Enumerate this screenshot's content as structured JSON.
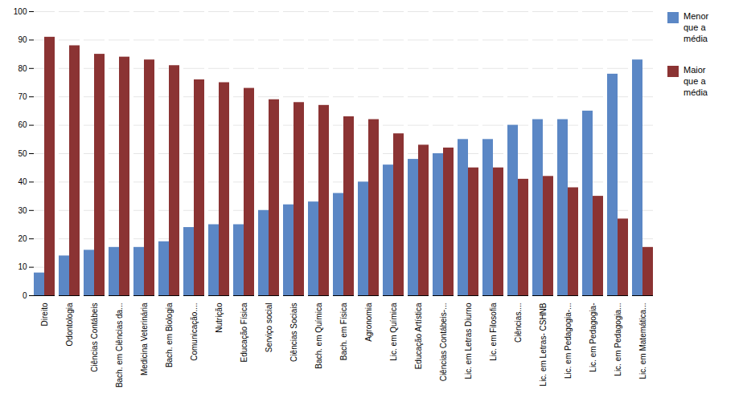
{
  "chart_data": {
    "type": "bar",
    "categories": [
      "Direito",
      "Odontologia",
      "Ciências Contábeis",
      "Bach. em Ciências da...",
      "Medicina Veterinária",
      "Bach. em Biologia",
      "Comunicação....",
      "Nutrição",
      "Educação Física",
      "Serviço social",
      "Ciências Sociais",
      "Bach. em Química",
      "Bach. em Física",
      "Agronomia",
      "Lic. em Química",
      "Educação Artística",
      "Ciências Contábeis-...",
      "Lic. em Letras Diurno",
      "Lic. em Filosofia",
      "Ciências....",
      "Lic. em Letras- CSHNB",
      "Lic. em Pedagogia-...",
      "Lic. em Pedagogia-",
      "Lic. em Pedagogia...",
      "Lic. em Matemática..."
    ],
    "series": [
      {
        "name": "Menor\nque a\nmédia",
        "color": "#5B87C5",
        "values": [
          8,
          14,
          16,
          17,
          17,
          19,
          24,
          25,
          25,
          30,
          32,
          33,
          36,
          40,
          46,
          48,
          50,
          55,
          55,
          60,
          62,
          62,
          65,
          78,
          83
        ]
      },
      {
        "name": "Maior\nque a\nmédia",
        "color": "#8B3333",
        "values": [
          91,
          88,
          85,
          84,
          83,
          81,
          76,
          75,
          73,
          69,
          68,
          67,
          63,
          62,
          57,
          53,
          52,
          45,
          45,
          41,
          42,
          38,
          35,
          27,
          17
        ]
      }
    ],
    "ylim": [
      0,
      100
    ],
    "yticks": [
      0,
      10,
      20,
      30,
      40,
      50,
      60,
      70,
      80,
      90,
      100
    ],
    "grid": true,
    "legend": "right"
  }
}
